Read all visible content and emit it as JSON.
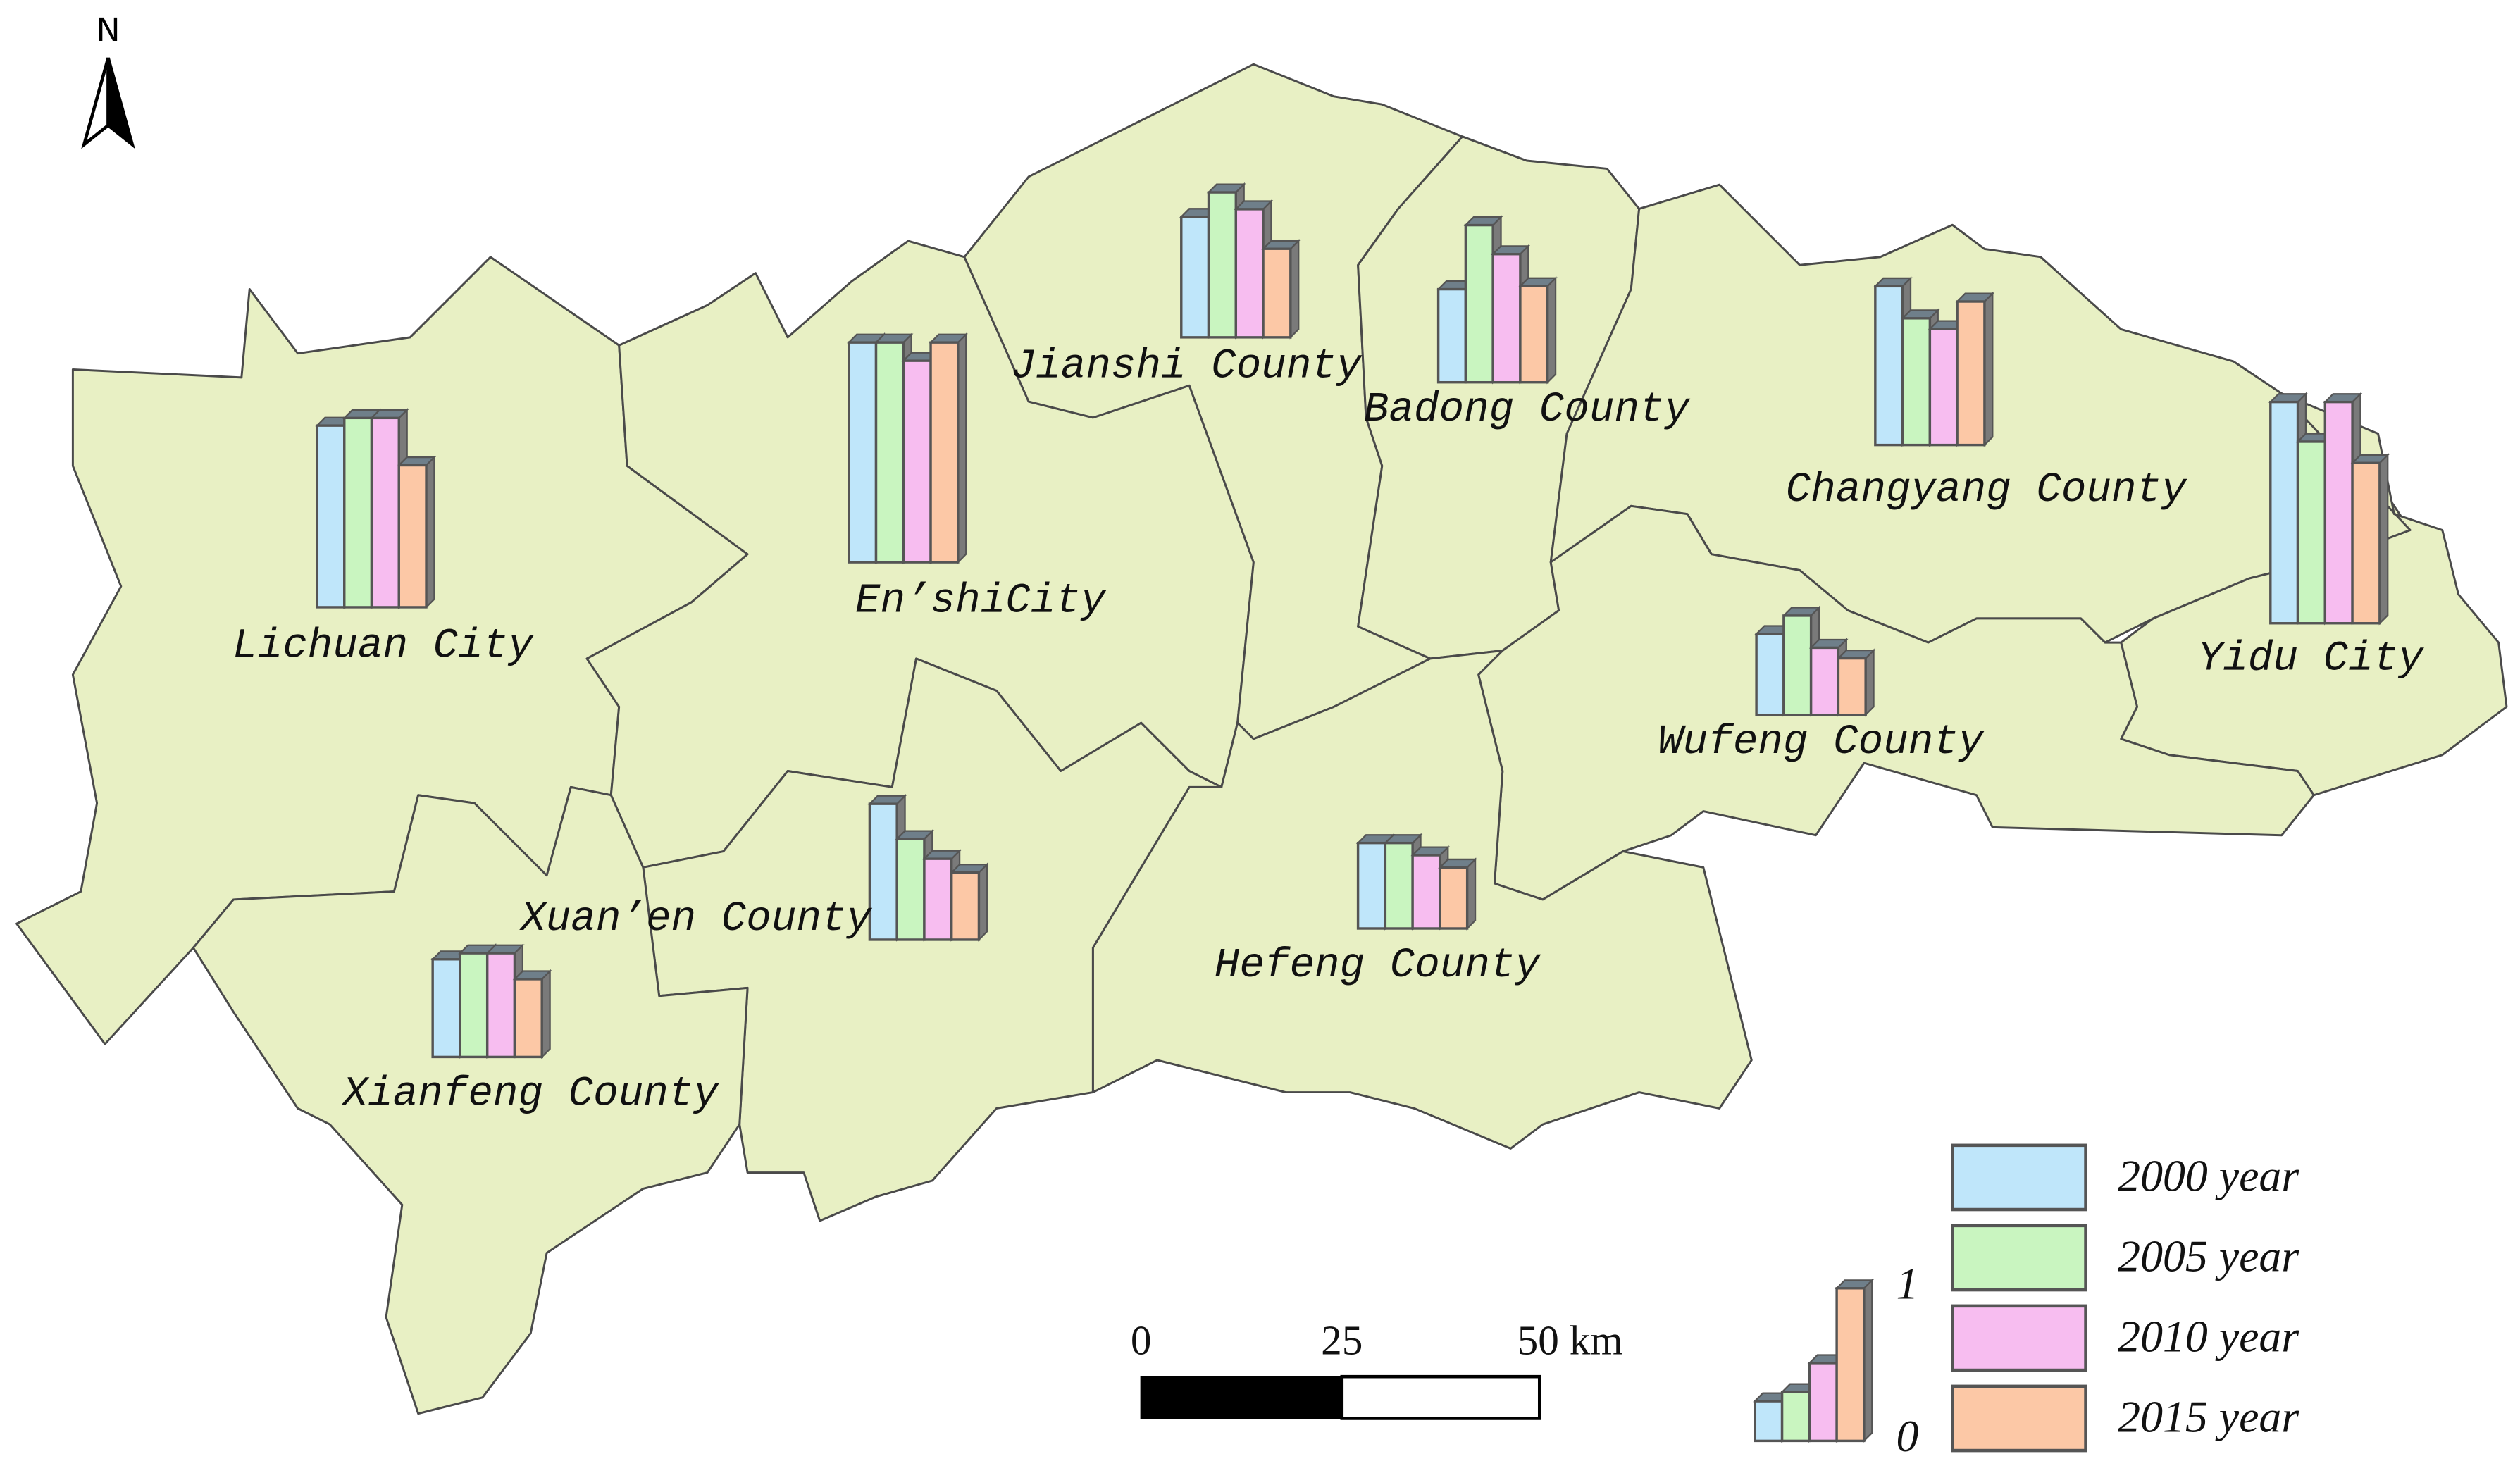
{
  "north": "N",
  "regions": [
    {
      "name": "Lichuan City",
      "values": [
        1.19,
        1.24,
        1.24,
        0.93
      ]
    },
    {
      "name": "En’shiCity",
      "values": [
        1.44,
        1.44,
        1.32,
        1.44
      ]
    },
    {
      "name": "Jianshi County",
      "values": [
        0.79,
        0.95,
        0.84,
        0.58
      ]
    },
    {
      "name": "Badong County",
      "values": [
        0.61,
        1.03,
        0.84,
        0.63
      ]
    },
    {
      "name": "Changyang County",
      "values": [
        1.04,
        0.83,
        0.76,
        0.94
      ]
    },
    {
      "name": "Yidu City",
      "values": [
        1.45,
        1.19,
        1.45,
        1.05
      ]
    },
    {
      "name": "Wufeng County",
      "values": [
        0.53,
        0.65,
        0.44,
        0.37
      ]
    },
    {
      "name": "Xuan’en County",
      "values": [
        0.89,
        0.66,
        0.53,
        0.44
      ]
    },
    {
      "name": "Hefeng County",
      "values": [
        0.56,
        0.56,
        0.48,
        0.4
      ]
    },
    {
      "name": "Xianfeng County",
      "values": [
        0.64,
        0.68,
        0.68,
        0.51
      ]
    }
  ],
  "legend": {
    "series": [
      {
        "name": "2000 year",
        "color": "#bfe6fa"
      },
      {
        "name": "2005 year",
        "color": "#c9f5c0"
      },
      {
        "name": "2010 year",
        "color": "#f7bdf0"
      },
      {
        "name": "2015 year",
        "color": "#fcc8a6"
      }
    ],
    "axis_ticks": [
      0,
      1
    ],
    "sample_values": [
      0.26,
      0.32,
      0.51,
      1
    ]
  },
  "scale_bar": {
    "labels": [
      "0",
      "25",
      "50 km"
    ]
  }
}
